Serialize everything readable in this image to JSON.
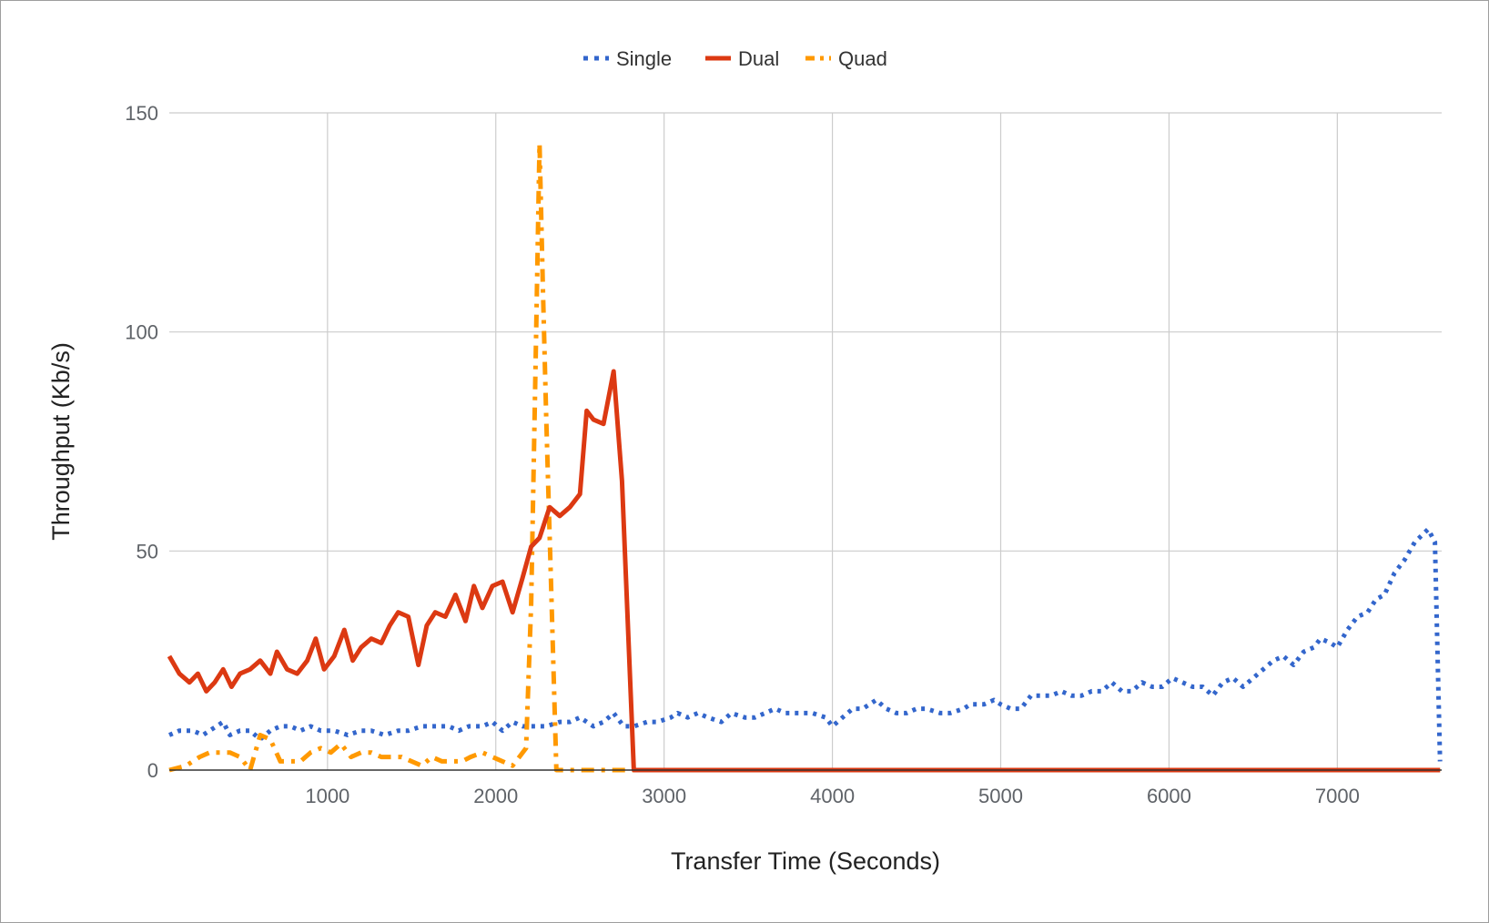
{
  "chart_data": {
    "type": "line",
    "title": "",
    "xlabel": "Transfer Time (Seconds)",
    "ylabel": "Throughput (Kb/s)",
    "xlim": [
      60,
      7620
    ],
    "ylim": [
      0,
      150
    ],
    "x_ticks": [
      "1000",
      "2000",
      "3000",
      "4000",
      "5000",
      "6000",
      "7000"
    ],
    "y_ticks": [
      "0",
      "50",
      "100",
      "150"
    ],
    "grid": true,
    "legend_position": "top-center",
    "series": [
      {
        "name": "Single",
        "color": "#3366cc",
        "style": "dotted",
        "points": [
          [
            60,
            8
          ],
          [
            120,
            9
          ],
          [
            200,
            9
          ],
          [
            260,
            8
          ],
          [
            340,
            10
          ],
          [
            380,
            11
          ],
          [
            420,
            8
          ],
          [
            480,
            9
          ],
          [
            540,
            9
          ],
          [
            600,
            7
          ],
          [
            660,
            9
          ],
          [
            720,
            10
          ],
          [
            780,
            10
          ],
          [
            840,
            9
          ],
          [
            900,
            10
          ],
          [
            960,
            9
          ],
          [
            1040,
            9
          ],
          [
            1120,
            8
          ],
          [
            1200,
            9
          ],
          [
            1260,
            9
          ],
          [
            1340,
            8
          ],
          [
            1420,
            9
          ],
          [
            1480,
            9
          ],
          [
            1560,
            10
          ],
          [
            1640,
            10
          ],
          [
            1720,
            10
          ],
          [
            1780,
            9
          ],
          [
            1840,
            10
          ],
          [
            1920,
            10
          ],
          [
            1980,
            11
          ],
          [
            2040,
            9
          ],
          [
            2100,
            11
          ],
          [
            2160,
            10
          ],
          [
            2220,
            10
          ],
          [
            2300,
            10
          ],
          [
            2380,
            11
          ],
          [
            2440,
            11
          ],
          [
            2500,
            12
          ],
          [
            2580,
            10
          ],
          [
            2640,
            11
          ],
          [
            2700,
            13
          ],
          [
            2760,
            10
          ],
          [
            2820,
            10
          ],
          [
            2900,
            11
          ],
          [
            2960,
            11
          ],
          [
            3040,
            12
          ],
          [
            3080,
            13
          ],
          [
            3140,
            12
          ],
          [
            3200,
            13
          ],
          [
            3260,
            12
          ],
          [
            3340,
            11
          ],
          [
            3400,
            13
          ],
          [
            3480,
            12
          ],
          [
            3540,
            12
          ],
          [
            3600,
            13
          ],
          [
            3660,
            14
          ],
          [
            3720,
            13
          ],
          [
            3800,
            13
          ],
          [
            3880,
            13
          ],
          [
            3960,
            12
          ],
          [
            4000,
            10
          ],
          [
            4060,
            12
          ],
          [
            4120,
            14
          ],
          [
            4180,
            14
          ],
          [
            4260,
            16
          ],
          [
            4320,
            14
          ],
          [
            4380,
            13
          ],
          [
            4440,
            13
          ],
          [
            4500,
            14
          ],
          [
            4560,
            14
          ],
          [
            4640,
            13
          ],
          [
            4700,
            13
          ],
          [
            4780,
            14
          ],
          [
            4820,
            15
          ],
          [
            4900,
            15
          ],
          [
            4960,
            16
          ],
          [
            5000,
            15
          ],
          [
            5060,
            14
          ],
          [
            5120,
            14
          ],
          [
            5180,
            17
          ],
          [
            5240,
            17
          ],
          [
            5300,
            17
          ],
          [
            5360,
            18
          ],
          [
            5420,
            17
          ],
          [
            5480,
            17
          ],
          [
            5540,
            18
          ],
          [
            5600,
            18
          ],
          [
            5660,
            20
          ],
          [
            5720,
            18
          ],
          [
            5780,
            18
          ],
          [
            5840,
            20
          ],
          [
            5900,
            19
          ],
          [
            5960,
            19
          ],
          [
            6020,
            21
          ],
          [
            6080,
            20
          ],
          [
            6140,
            19
          ],
          [
            6200,
            19
          ],
          [
            6260,
            17
          ],
          [
            6320,
            20
          ],
          [
            6380,
            21
          ],
          [
            6440,
            19
          ],
          [
            6500,
            21
          ],
          [
            6560,
            23
          ],
          [
            6620,
            25
          ],
          [
            6680,
            26
          ],
          [
            6740,
            24
          ],
          [
            6800,
            27
          ],
          [
            6860,
            28
          ],
          [
            6900,
            30
          ],
          [
            6960,
            29
          ],
          [
            7000,
            28
          ],
          [
            7060,
            32
          ],
          [
            7120,
            35
          ],
          [
            7180,
            36
          ],
          [
            7230,
            39
          ],
          [
            7280,
            40
          ],
          [
            7340,
            45
          ],
          [
            7400,
            48
          ],
          [
            7460,
            52
          ],
          [
            7540,
            55
          ],
          [
            7580,
            52
          ],
          [
            7610,
            2
          ]
        ]
      },
      {
        "name": "Dual",
        "color": "#dc3912",
        "style": "solid",
        "points": [
          [
            60,
            26
          ],
          [
            120,
            22
          ],
          [
            180,
            20
          ],
          [
            230,
            22
          ],
          [
            280,
            18
          ],
          [
            330,
            20
          ],
          [
            380,
            23
          ],
          [
            430,
            19
          ],
          [
            480,
            22
          ],
          [
            540,
            23
          ],
          [
            600,
            25
          ],
          [
            660,
            22
          ],
          [
            700,
            27
          ],
          [
            760,
            23
          ],
          [
            820,
            22
          ],
          [
            880,
            25
          ],
          [
            930,
            30
          ],
          [
            980,
            23
          ],
          [
            1040,
            26
          ],
          [
            1100,
            32
          ],
          [
            1150,
            25
          ],
          [
            1200,
            28
          ],
          [
            1260,
            30
          ],
          [
            1320,
            29
          ],
          [
            1370,
            33
          ],
          [
            1420,
            36
          ],
          [
            1480,
            35
          ],
          [
            1540,
            24
          ],
          [
            1590,
            33
          ],
          [
            1640,
            36
          ],
          [
            1700,
            35
          ],
          [
            1760,
            40
          ],
          [
            1820,
            34
          ],
          [
            1870,
            42
          ],
          [
            1920,
            37
          ],
          [
            1980,
            42
          ],
          [
            2040,
            43
          ],
          [
            2100,
            36
          ],
          [
            2160,
            44
          ],
          [
            2210,
            51
          ],
          [
            2260,
            53
          ],
          [
            2320,
            60
          ],
          [
            2380,
            58
          ],
          [
            2440,
            60
          ],
          [
            2500,
            63
          ],
          [
            2540,
            82
          ],
          [
            2580,
            80
          ],
          [
            2640,
            79
          ],
          [
            2700,
            91
          ],
          [
            2750,
            66
          ],
          [
            2820,
            0
          ],
          [
            3100,
            0
          ],
          [
            3500,
            0
          ],
          [
            4000,
            0
          ],
          [
            4500,
            0
          ],
          [
            5000,
            0
          ],
          [
            5500,
            0
          ],
          [
            6000,
            0
          ],
          [
            6500,
            0
          ],
          [
            7000,
            0
          ],
          [
            7610,
            0
          ]
        ]
      },
      {
        "name": "Quad",
        "color": "#ff9900",
        "style": "dash-dot",
        "points": [
          [
            60,
            0
          ],
          [
            160,
            1
          ],
          [
            240,
            3
          ],
          [
            300,
            4
          ],
          [
            360,
            4
          ],
          [
            420,
            4
          ],
          [
            480,
            3
          ],
          [
            540,
            0
          ],
          [
            600,
            8
          ],
          [
            660,
            7
          ],
          [
            720,
            2
          ],
          [
            780,
            2
          ],
          [
            840,
            2
          ],
          [
            900,
            4
          ],
          [
            960,
            5
          ],
          [
            1020,
            4
          ],
          [
            1080,
            6
          ],
          [
            1140,
            3
          ],
          [
            1200,
            4
          ],
          [
            1260,
            4
          ],
          [
            1320,
            3
          ],
          [
            1380,
            3
          ],
          [
            1440,
            3
          ],
          [
            1500,
            2
          ],
          [
            1560,
            1
          ],
          [
            1620,
            3
          ],
          [
            1680,
            2
          ],
          [
            1740,
            2
          ],
          [
            1800,
            2
          ],
          [
            1850,
            3
          ],
          [
            1920,
            4
          ],
          [
            1980,
            3
          ],
          [
            2040,
            2
          ],
          [
            2100,
            1
          ],
          [
            2140,
            3
          ],
          [
            2180,
            5
          ],
          [
            2210,
            38
          ],
          [
            2240,
            100
          ],
          [
            2260,
            143
          ],
          [
            2280,
            110
          ],
          [
            2300,
            80
          ],
          [
            2330,
            40
          ],
          [
            2360,
            0
          ],
          [
            2450,
            0
          ],
          [
            2600,
            0
          ],
          [
            3000,
            0
          ],
          [
            3500,
            0
          ],
          [
            4000,
            0
          ],
          [
            4500,
            0
          ],
          [
            5000,
            0
          ],
          [
            5500,
            0
          ],
          [
            6000,
            0
          ],
          [
            6500,
            0
          ],
          [
            7000,
            0
          ],
          [
            7610,
            0
          ]
        ]
      }
    ]
  }
}
